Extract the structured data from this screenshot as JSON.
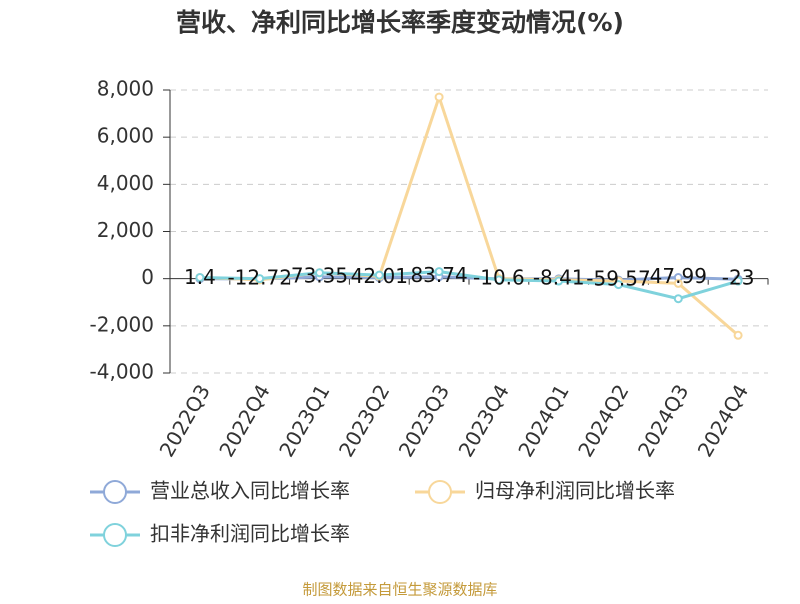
{
  "chart_data": {
    "type": "line",
    "title": "营收、净利同比增长率季度变动情况(%)",
    "categories": [
      "2022Q3",
      "2022Q4",
      "2023Q1",
      "2023Q2",
      "2023Q3",
      "2023Q4",
      "2024Q1",
      "2024Q2",
      "2024Q3",
      "2024Q4"
    ],
    "series": [
      {
        "name": "营业总收入同比增长率",
        "color": "#8fa9d8",
        "values": [
          1.4,
          -12.72,
          73.35,
          42.01,
          83.74,
          -10.6,
          -8.41,
          -59.57,
          47.99,
          -23
        ],
        "show_labels": true
      },
      {
        "name": "归母净利润同比增长率",
        "color": "#f8d79a",
        "values": [
          50,
          -50,
          250,
          100,
          7700,
          0,
          -50,
          -100,
          -200,
          -2400
        ],
        "show_labels": false
      },
      {
        "name": "扣非净利润同比增长率",
        "color": "#7fd2dc",
        "values": [
          50,
          0,
          250,
          150,
          300,
          -50,
          -100,
          -250,
          -850,
          -100
        ],
        "show_labels": false
      }
    ],
    "ylim": [
      -4000,
      8000
    ],
    "yticks": [
      {
        "value": -4000,
        "label": "-4,000"
      },
      {
        "value": -2000,
        "label": "-2,000"
      },
      0,
      {
        "value": 2000,
        "label": "2,000"
      },
      {
        "value": 4000,
        "label": "4,000"
      },
      {
        "value": 6000,
        "label": "6,000"
      },
      {
        "value": 8000,
        "label": "8,000"
      }
    ],
    "grid": true,
    "legend": "bottom",
    "source": "制图数据来自恒生聚源数据库"
  }
}
